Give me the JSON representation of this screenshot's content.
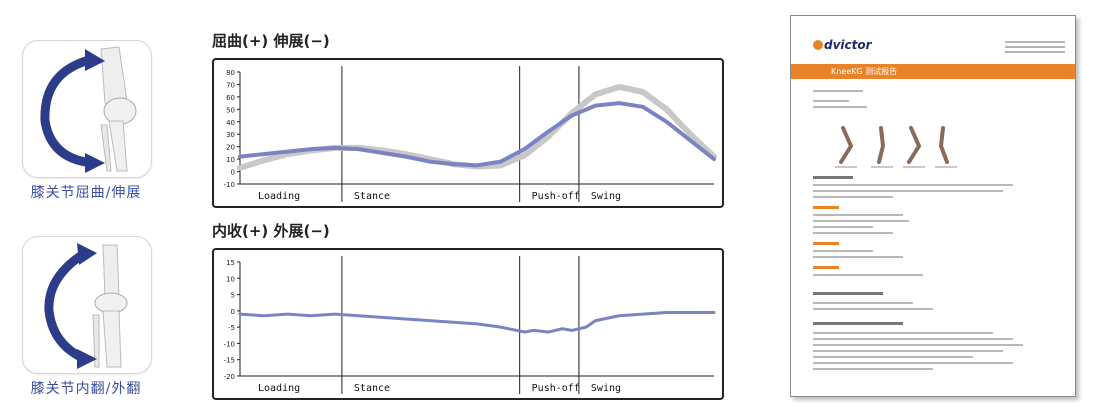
{
  "cards": [
    {
      "caption": "膝关节屈曲/伸展",
      "icon": "knee-flexion-extension-icon"
    },
    {
      "caption": "膝关节内翻/外翻",
      "icon": "knee-varus-valgus-icon"
    }
  ],
  "chart_data": [
    {
      "type": "line",
      "title": "屈曲(+) 伸展(−)",
      "ylim": [
        -10,
        80
      ],
      "yticks": [
        -10,
        0,
        10,
        20,
        30,
        40,
        50,
        60,
        70,
        80
      ],
      "grid": false,
      "phase_labels": [
        "Loading",
        "Stance",
        "Push-off",
        "Swing"
      ],
      "phase_dividers": [
        0.215,
        0.59,
        0.715
      ],
      "series": [
        {
          "color": "#c8c8c8",
          "x": [
            0,
            0.05,
            0.1,
            0.15,
            0.2,
            0.25,
            0.3,
            0.35,
            0.4,
            0.45,
            0.5,
            0.55,
            0.6,
            0.65,
            0.7,
            0.75,
            0.8,
            0.85,
            0.9,
            0.95,
            1.0
          ],
          "y": [
            3,
            9,
            14,
            17,
            19,
            19,
            17,
            14,
            10,
            6,
            4,
            5,
            13,
            28,
            47,
            62,
            68,
            64,
            50,
            30,
            12
          ]
        },
        {
          "color": "#7a84c2",
          "x": [
            0,
            0.05,
            0.1,
            0.15,
            0.2,
            0.25,
            0.3,
            0.35,
            0.4,
            0.45,
            0.5,
            0.55,
            0.6,
            0.65,
            0.7,
            0.75,
            0.8,
            0.85,
            0.9,
            0.95,
            1.0
          ],
          "y": [
            12,
            14,
            16,
            18,
            19,
            18,
            15,
            12,
            8,
            6,
            5,
            8,
            18,
            32,
            45,
            53,
            55,
            52,
            40,
            25,
            10
          ]
        }
      ]
    },
    {
      "type": "line",
      "title": "内收(+) 外展(−)",
      "ylim": [
        -20,
        15
      ],
      "yticks": [
        -20,
        -15,
        -10,
        -5,
        0,
        5,
        10,
        15
      ],
      "grid": false,
      "phase_labels": [
        "Loading",
        "Stance",
        "Push-off",
        "Swing"
      ],
      "phase_dividers": [
        0.215,
        0.59,
        0.715
      ],
      "series": [
        {
          "color": "#7a84c2",
          "x": [
            0,
            0.05,
            0.1,
            0.15,
            0.2,
            0.25,
            0.3,
            0.35,
            0.4,
            0.45,
            0.5,
            0.55,
            0.6,
            0.62,
            0.65,
            0.68,
            0.7,
            0.73,
            0.75,
            0.8,
            0.85,
            0.9,
            0.95,
            1.0
          ],
          "y": [
            -1,
            -1.5,
            -1,
            -1.5,
            -1,
            -1.5,
            -2,
            -2.5,
            -3,
            -3.5,
            -4,
            -5,
            -6.5,
            -6,
            -6.5,
            -5.5,
            -6,
            -5,
            -3,
            -1.5,
            -1,
            -0.5,
            -0.5,
            -0.5
          ]
        }
      ]
    }
  ],
  "document": {
    "logo": "dvictor",
    "banner": "KneeKG 测试报告"
  }
}
